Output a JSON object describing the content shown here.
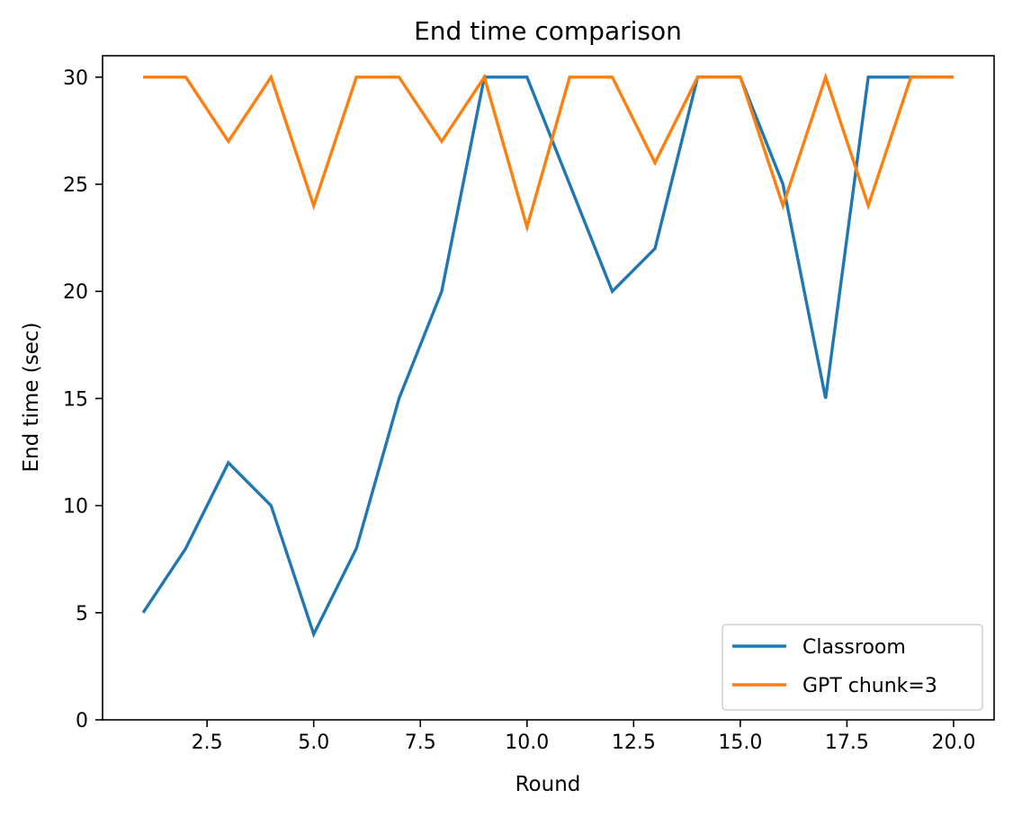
{
  "chart_data": {
    "type": "line",
    "title": "End time comparison",
    "xlabel": "Round",
    "ylabel": "End time (sec)",
    "x": [
      1,
      2,
      3,
      4,
      5,
      6,
      7,
      8,
      9,
      10,
      11,
      12,
      13,
      14,
      15,
      16,
      17,
      18,
      19,
      20
    ],
    "series": [
      {
        "name": "Classroom",
        "color": "#1f77b4",
        "values": [
          5,
          8,
          12,
          10,
          4,
          8,
          15,
          20,
          30,
          30,
          25,
          20,
          22,
          30,
          30,
          25,
          15,
          30,
          30,
          30
        ]
      },
      {
        "name": "GPT chunk=3",
        "color": "#ff7f0e",
        "values": [
          30,
          30,
          27,
          30,
          24,
          30,
          30,
          27,
          30,
          23,
          30,
          30,
          26,
          30,
          30,
          24,
          30,
          24,
          30,
          30
        ]
      }
    ],
    "xlim": [
      0.05,
      20.95
    ],
    "ylim": [
      0,
      31
    ],
    "xticks": [
      2.5,
      5.0,
      7.5,
      10.0,
      12.5,
      15.0,
      17.5,
      20.0
    ],
    "xtick_labels": [
      "2.5",
      "5.0",
      "7.5",
      "10.0",
      "12.5",
      "15.0",
      "17.5",
      "20.0"
    ],
    "yticks": [
      0,
      5,
      10,
      15,
      20,
      25,
      30
    ],
    "ytick_labels": [
      "0",
      "5",
      "10",
      "15",
      "20",
      "25",
      "30"
    ],
    "grid": false,
    "legend_position": "lower-right"
  }
}
